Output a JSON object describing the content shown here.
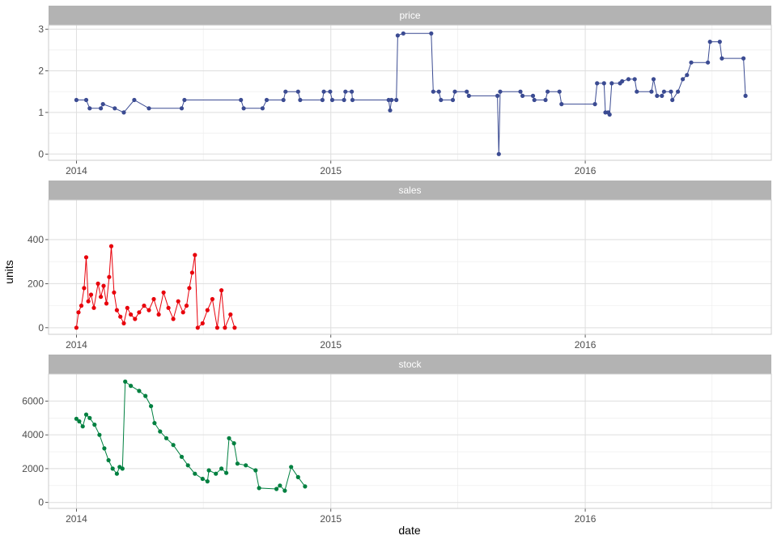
{
  "chart_data": {
    "type": "line",
    "layout": "faceted-vertical",
    "xlabel": "date",
    "ylabel": "units",
    "x_ticks": [
      "2014",
      "2015",
      "2016"
    ],
    "x_range": [
      "2013-11-22",
      "2016-09-24"
    ],
    "grid": true,
    "legend": "none",
    "panels": [
      {
        "name": "price",
        "color": "#3B4B92",
        "ylim": [
          -0.15,
          3.1
        ],
        "yticks": [
          "0",
          "1",
          "2",
          "3"
        ],
        "yticks_values": [
          0,
          1,
          2,
          3
        ],
        "series": [
          [
            "2014-01-01",
            1.3
          ],
          [
            "2014-01-15",
            1.3
          ],
          [
            "2014-01-20",
            1.1
          ],
          [
            "2014-02-05",
            1.1
          ],
          [
            "2014-02-08",
            1.2
          ],
          [
            "2014-02-25",
            1.1
          ],
          [
            "2014-03-10",
            1.0
          ],
          [
            "2014-03-25",
            1.3
          ],
          [
            "2014-04-15",
            1.1
          ],
          [
            "2014-06-01",
            1.1
          ],
          [
            "2014-06-05",
            1.3
          ],
          [
            "2014-08-25",
            1.3
          ],
          [
            "2014-08-29",
            1.1
          ],
          [
            "2014-09-25",
            1.1
          ],
          [
            "2014-10-01",
            1.3
          ],
          [
            "2014-10-25",
            1.3
          ],
          [
            "2014-10-28",
            1.5
          ],
          [
            "2014-11-15",
            1.5
          ],
          [
            "2014-11-18",
            1.3
          ],
          [
            "2014-12-20",
            1.3
          ],
          [
            "2014-12-22",
            1.5
          ],
          [
            "2014-12-31",
            1.5
          ],
          [
            "2015-01-03",
            1.3
          ],
          [
            "2015-01-20",
            1.3
          ],
          [
            "2015-01-22",
            1.5
          ],
          [
            "2015-01-31",
            1.5
          ],
          [
            "2015-02-01",
            1.3
          ],
          [
            "2015-03-25",
            1.3
          ],
          [
            "2015-03-27",
            1.05
          ],
          [
            "2015-03-29",
            1.3
          ],
          [
            "2015-04-05",
            1.3
          ],
          [
            "2015-04-07",
            2.85
          ],
          [
            "2015-04-15",
            2.9
          ],
          [
            "2015-05-25",
            2.9
          ],
          [
            "2015-05-28",
            1.5
          ],
          [
            "2015-06-05",
            1.5
          ],
          [
            "2015-06-08",
            1.3
          ],
          [
            "2015-06-25",
            1.3
          ],
          [
            "2015-06-28",
            1.5
          ],
          [
            "2015-07-15",
            1.5
          ],
          [
            "2015-07-18",
            1.4
          ],
          [
            "2015-08-28",
            1.4
          ],
          [
            "2015-08-30",
            0.0
          ],
          [
            "2015-09-01",
            1.5
          ],
          [
            "2015-09-30",
            1.5
          ],
          [
            "2015-10-03",
            1.4
          ],
          [
            "2015-10-18",
            1.4
          ],
          [
            "2015-10-20",
            1.3
          ],
          [
            "2015-11-05",
            1.3
          ],
          [
            "2015-11-08",
            1.5
          ],
          [
            "2015-11-25",
            1.5
          ],
          [
            "2015-11-28",
            1.2
          ],
          [
            "2016-01-15",
            1.2
          ],
          [
            "2016-01-18",
            1.7
          ],
          [
            "2016-01-28",
            1.7
          ],
          [
            "2016-01-30",
            1.0
          ],
          [
            "2016-02-03",
            1.0
          ],
          [
            "2016-02-05",
            0.95
          ],
          [
            "2016-02-08",
            1.7
          ],
          [
            "2016-02-20",
            1.7
          ],
          [
            "2016-02-23",
            1.75
          ],
          [
            "2016-03-03",
            1.8
          ],
          [
            "2016-03-12",
            1.8
          ],
          [
            "2016-03-15",
            1.5
          ],
          [
            "2016-04-05",
            1.5
          ],
          [
            "2016-04-08",
            1.8
          ],
          [
            "2016-04-13",
            1.4
          ],
          [
            "2016-04-20",
            1.4
          ],
          [
            "2016-04-23",
            1.5
          ],
          [
            "2016-05-03",
            1.5
          ],
          [
            "2016-05-05",
            1.3
          ],
          [
            "2016-05-13",
            1.5
          ],
          [
            "2016-05-20",
            1.8
          ],
          [
            "2016-05-26",
            1.9
          ],
          [
            "2016-06-01",
            2.2
          ],
          [
            "2016-06-25",
            2.2
          ],
          [
            "2016-06-28",
            2.7
          ],
          [
            "2016-07-12",
            2.7
          ],
          [
            "2016-07-15",
            2.3
          ],
          [
            "2016-08-15",
            2.3
          ],
          [
            "2016-08-18",
            1.4
          ]
        ]
      },
      {
        "name": "sales",
        "color": "#E8000B",
        "ylim": [
          -30,
          580
        ],
        "yticks": [
          "0",
          "200",
          "400"
        ],
        "yticks_values": [
          0,
          200,
          400
        ],
        "series": [
          [
            "2014-01-01",
            0
          ],
          [
            "2014-01-04",
            70
          ],
          [
            "2014-01-08",
            100
          ],
          [
            "2014-01-12",
            180
          ],
          [
            "2014-01-15",
            320
          ],
          [
            "2014-01-18",
            120
          ],
          [
            "2014-01-22",
            150
          ],
          [
            "2014-01-26",
            90
          ],
          [
            "2014-02-01",
            200
          ],
          [
            "2014-02-05",
            140
          ],
          [
            "2014-02-09",
            190
          ],
          [
            "2014-02-13",
            110
          ],
          [
            "2014-02-17",
            230
          ],
          [
            "2014-02-20",
            370
          ],
          [
            "2014-02-24",
            160
          ],
          [
            "2014-02-28",
            80
          ],
          [
            "2014-03-05",
            50
          ],
          [
            "2014-03-10",
            20
          ],
          [
            "2014-03-15",
            90
          ],
          [
            "2014-03-20",
            60
          ],
          [
            "2014-03-26",
            40
          ],
          [
            "2014-04-01",
            70
          ],
          [
            "2014-04-08",
            100
          ],
          [
            "2014-04-15",
            80
          ],
          [
            "2014-04-22",
            130
          ],
          [
            "2014-04-29",
            60
          ],
          [
            "2014-05-06",
            160
          ],
          [
            "2014-05-13",
            90
          ],
          [
            "2014-05-20",
            40
          ],
          [
            "2014-05-27",
            120
          ],
          [
            "2014-06-03",
            70
          ],
          [
            "2014-06-08",
            100
          ],
          [
            "2014-06-12",
            180
          ],
          [
            "2014-06-16",
            250
          ],
          [
            "2014-06-20",
            330
          ],
          [
            "2014-06-24",
            0
          ],
          [
            "2014-07-01",
            20
          ],
          [
            "2014-07-08",
            80
          ],
          [
            "2014-07-15",
            130
          ],
          [
            "2014-07-22",
            0
          ],
          [
            "2014-07-28",
            170
          ],
          [
            "2014-08-02",
            0
          ],
          [
            "2014-08-10",
            60
          ],
          [
            "2014-08-16",
            0
          ]
        ]
      },
      {
        "name": "stock",
        "color": "#008040",
        "ylim": [
          -350,
          7600
        ],
        "yticks": [
          "0",
          "2000",
          "4000",
          "6000"
        ],
        "yticks_values": [
          0,
          2000,
          4000,
          6000
        ],
        "series": [
          [
            "2014-01-01",
            4950
          ],
          [
            "2014-01-05",
            4800
          ],
          [
            "2014-01-10",
            4500
          ],
          [
            "2014-01-15",
            5200
          ],
          [
            "2014-01-20",
            5000
          ],
          [
            "2014-01-27",
            4600
          ],
          [
            "2014-02-03",
            4000
          ],
          [
            "2014-02-10",
            3200
          ],
          [
            "2014-02-16",
            2500
          ],
          [
            "2014-02-22",
            2000
          ],
          [
            "2014-02-28",
            1700
          ],
          [
            "2014-03-04",
            2100
          ],
          [
            "2014-03-08",
            2000
          ],
          [
            "2014-03-12",
            7150
          ],
          [
            "2014-03-20",
            6900
          ],
          [
            "2014-04-01",
            6600
          ],
          [
            "2014-04-10",
            6300
          ],
          [
            "2014-04-18",
            5700
          ],
          [
            "2014-04-23",
            4700
          ],
          [
            "2014-05-01",
            4200
          ],
          [
            "2014-05-10",
            3800
          ],
          [
            "2014-05-20",
            3400
          ],
          [
            "2014-06-01",
            2700
          ],
          [
            "2014-06-10",
            2200
          ],
          [
            "2014-06-20",
            1700
          ],
          [
            "2014-07-01",
            1400
          ],
          [
            "2014-07-08",
            1250
          ],
          [
            "2014-07-10",
            1900
          ],
          [
            "2014-07-20",
            1700
          ],
          [
            "2014-07-28",
            2000
          ],
          [
            "2014-08-04",
            1750
          ],
          [
            "2014-08-08",
            3800
          ],
          [
            "2014-08-15",
            3500
          ],
          [
            "2014-08-20",
            2300
          ],
          [
            "2014-09-01",
            2200
          ],
          [
            "2014-09-15",
            1900
          ],
          [
            "2014-09-20",
            850
          ],
          [
            "2014-10-15",
            800
          ],
          [
            "2014-10-20",
            1000
          ],
          [
            "2014-10-27",
            700
          ],
          [
            "2014-11-05",
            2100
          ],
          [
            "2014-11-15",
            1500
          ],
          [
            "2014-11-25",
            950
          ]
        ]
      }
    ]
  }
}
